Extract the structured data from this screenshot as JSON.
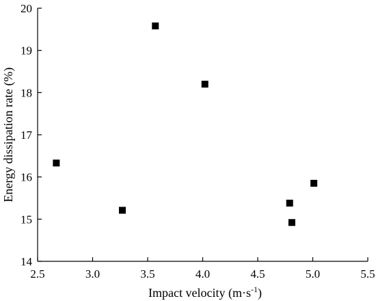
{
  "chart_data": {
    "type": "scatter",
    "title": "",
    "xlabel": "Impact velocity (m·s",
    "xlabel_sup": "-1",
    "xlabel_end": ")",
    "ylabel": "Energy dissipation rate (%)",
    "xlim": [
      2.5,
      5.5
    ],
    "ylim": [
      14,
      20
    ],
    "xticks": [
      "2.5",
      "3.0",
      "3.5",
      "4.0",
      "4.5",
      "5.0",
      "5.5"
    ],
    "yticks": [
      "14",
      "15",
      "16",
      "17",
      "18",
      "19",
      "20"
    ],
    "grid": false,
    "legend": "none",
    "marker": "square",
    "marker_color": "#000000",
    "points": [
      {
        "x": 2.67,
        "y": 16.33
      },
      {
        "x": 3.27,
        "y": 15.21
      },
      {
        "x": 3.57,
        "y": 19.58
      },
      {
        "x": 4.02,
        "y": 18.2
      },
      {
        "x": 4.79,
        "y": 15.38
      },
      {
        "x": 4.81,
        "y": 14.92
      },
      {
        "x": 5.01,
        "y": 15.85
      }
    ]
  }
}
